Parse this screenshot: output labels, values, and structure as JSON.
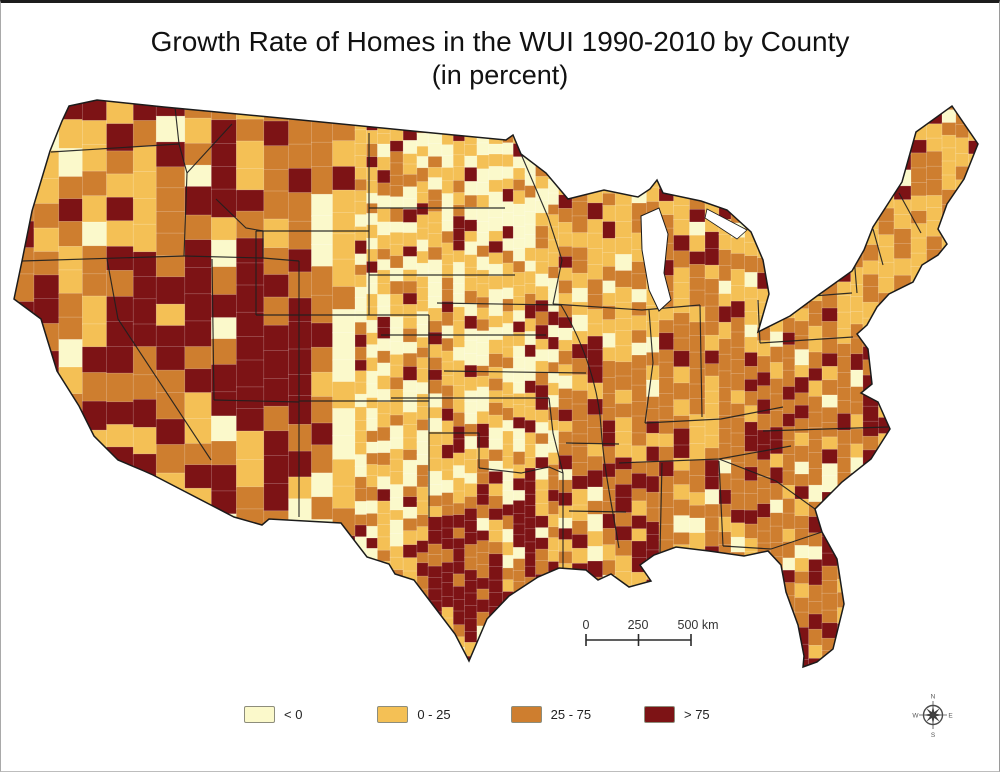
{
  "figure": {
    "title_line1": "Growth Rate of Homes in the WUI 1990-2010 by County",
    "title_line2": "(in percent)"
  },
  "map": {
    "region": "Contiguous United States",
    "style": "county choropleth"
  },
  "legend": {
    "items": [
      {
        "label": "< 0",
        "color": "#FBF9CB"
      },
      {
        "label": "0 - 25",
        "color": "#F4C055"
      },
      {
        "label": "25 - 75",
        "color": "#CE7E2F"
      },
      {
        "label": "> 75",
        "color": "#7D1315"
      }
    ]
  },
  "scale_bar": {
    "tick0": "0",
    "tick1": "250",
    "tick2": "500 km"
  },
  "compass": {
    "n": "N",
    "e": "E",
    "s": "S",
    "w": "W"
  },
  "colors": {
    "outline": "#1b1b1b",
    "state_border": "#1f1f1f",
    "county_border": "#ffffff",
    "water": "#ffffff",
    "background": "#ffffff"
  }
}
